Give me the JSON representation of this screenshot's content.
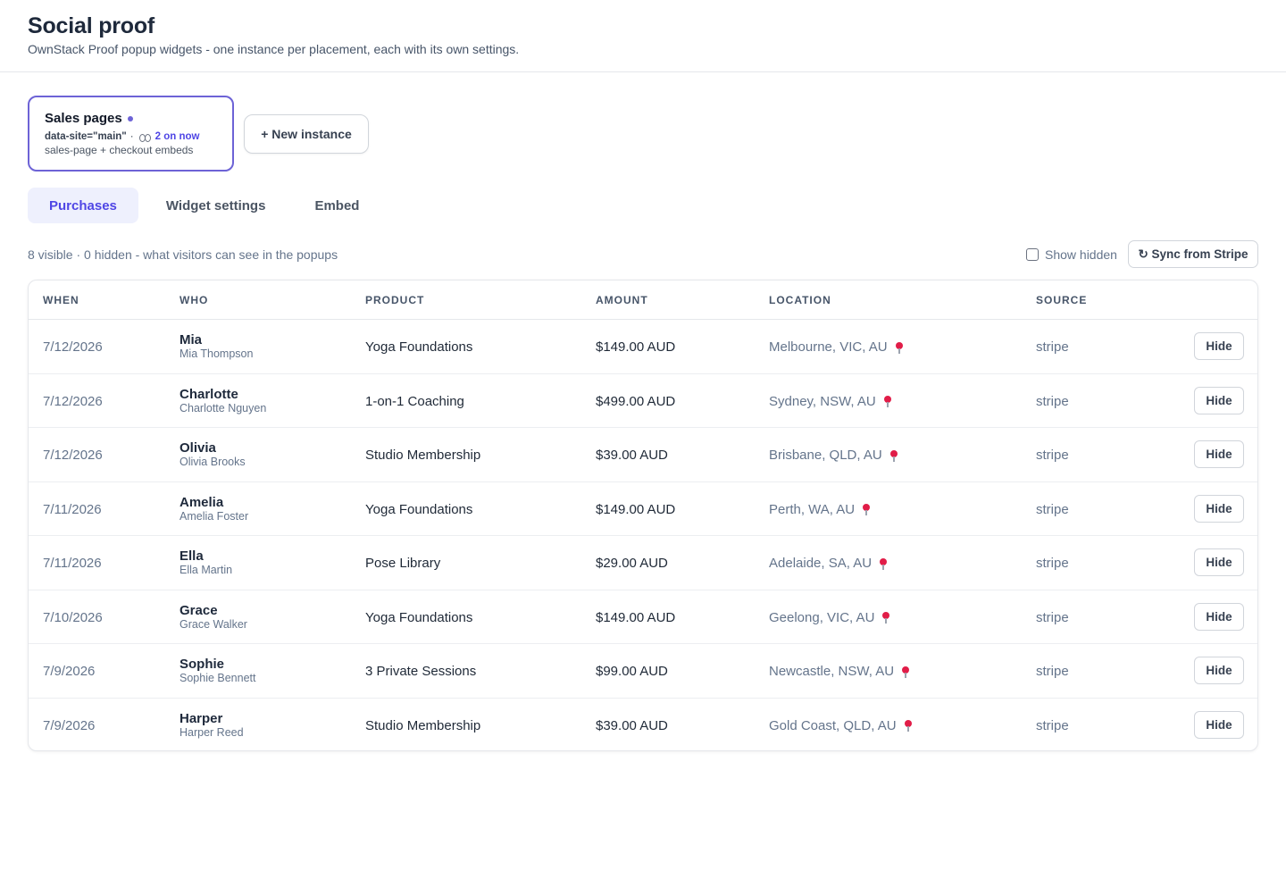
{
  "header": {
    "title": "Social proof",
    "subtitle": "OwnStack Proof popup widgets - one instance per placement, each with its own settings."
  },
  "instance": {
    "name": "Sales pages",
    "site_attr": "data-site=\"main\"",
    "separator": "·",
    "live_count": "2 on now",
    "description": "sales-page + checkout embeds"
  },
  "new_instance_label": "+ New instance",
  "tabs": [
    {
      "label": "Purchases",
      "active": true
    },
    {
      "label": "Widget settings",
      "active": false
    },
    {
      "label": "Embed",
      "active": false
    }
  ],
  "summary": "8 visible · 0 hidden - what visitors can see in the popups",
  "show_hidden_label": "Show hidden",
  "show_hidden_checked": false,
  "sync_label": "↻ Sync from Stripe",
  "columns": [
    "WHEN",
    "WHO",
    "PRODUCT",
    "AMOUNT",
    "LOCATION",
    "SOURCE"
  ],
  "hide_label": "Hide",
  "rows": [
    {
      "when": "7/12/2026",
      "name": "Mia",
      "full_name": "Mia Thompson",
      "product": "Yoga Foundations",
      "amount": "$149.00 AUD",
      "location": "Melbourne, VIC, AU",
      "source": "stripe"
    },
    {
      "when": "7/12/2026",
      "name": "Charlotte",
      "full_name": "Charlotte Nguyen",
      "product": "1-on-1 Coaching",
      "amount": "$499.00 AUD",
      "location": "Sydney, NSW, AU",
      "source": "stripe"
    },
    {
      "when": "7/12/2026",
      "name": "Olivia",
      "full_name": "Olivia Brooks",
      "product": "Studio Membership",
      "amount": "$39.00 AUD",
      "location": "Brisbane, QLD, AU",
      "source": "stripe"
    },
    {
      "when": "7/11/2026",
      "name": "Amelia",
      "full_name": "Amelia Foster",
      "product": "Yoga Foundations",
      "amount": "$149.00 AUD",
      "location": "Perth, WA, AU",
      "source": "stripe"
    },
    {
      "when": "7/11/2026",
      "name": "Ella",
      "full_name": "Ella Martin",
      "product": "Pose Library",
      "amount": "$29.00 AUD",
      "location": "Adelaide, SA, AU",
      "source": "stripe"
    },
    {
      "when": "7/10/2026",
      "name": "Grace",
      "full_name": "Grace Walker",
      "product": "Yoga Foundations",
      "amount": "$149.00 AUD",
      "location": "Geelong, VIC, AU",
      "source": "stripe"
    },
    {
      "when": "7/9/2026",
      "name": "Sophie",
      "full_name": "Sophie Bennett",
      "product": "3 Private Sessions",
      "amount": "$99.00 AUD",
      "location": "Newcastle, NSW, AU",
      "source": "stripe"
    },
    {
      "when": "7/9/2026",
      "name": "Harper",
      "full_name": "Harper Reed",
      "product": "Studio Membership",
      "amount": "$39.00 AUD",
      "location": "Gold Coast, QLD, AU",
      "source": "stripe"
    }
  ],
  "colors": {
    "accent": "#4f46e5",
    "card_border": "#6d63d6",
    "pin": "#e11d48"
  }
}
